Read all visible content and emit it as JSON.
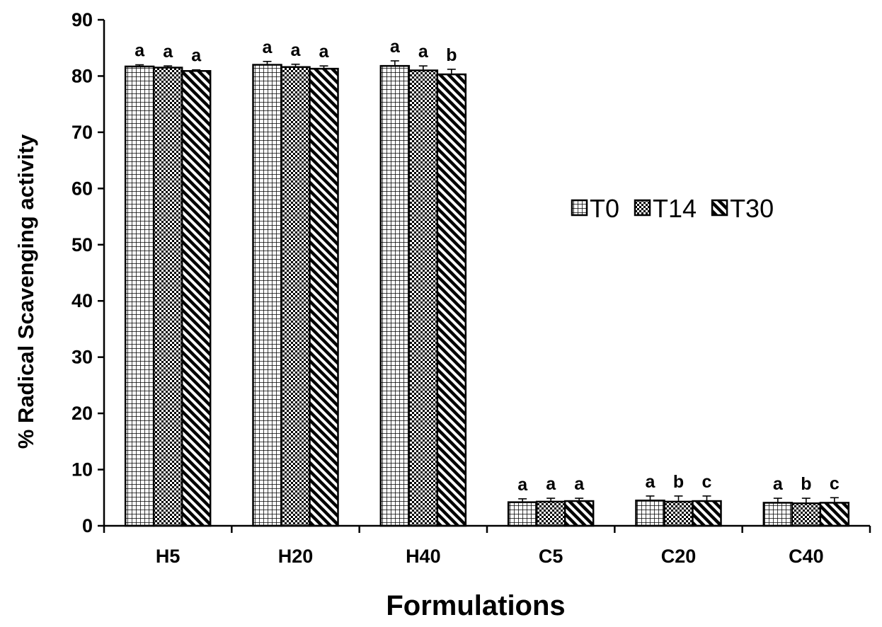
{
  "chart_data": {
    "type": "bar",
    "title": "",
    "xlabel": "Formulations",
    "ylabel": "% Radical Scavenging activity",
    "ylim": [
      0,
      90
    ],
    "yticks": [
      0,
      10,
      20,
      30,
      40,
      50,
      60,
      70,
      80,
      90
    ],
    "grid": false,
    "legend_position": "right",
    "categories": [
      "H5",
      "H20",
      "H40",
      "C5",
      "C20",
      "C40"
    ],
    "series": [
      {
        "name": "T0",
        "pattern": "grid",
        "values": [
          81.7,
          82.0,
          81.8,
          4.2,
          4.5,
          4.1
        ],
        "errors": [
          0.3,
          0.6,
          0.9,
          0.6,
          0.8,
          0.8
        ],
        "labels": [
          "a",
          "a",
          "a",
          "a",
          "a",
          "a"
        ]
      },
      {
        "name": "T14",
        "pattern": "checker",
        "values": [
          81.5,
          81.6,
          81.0,
          4.3,
          4.3,
          4.0
        ],
        "errors": [
          0.3,
          0.5,
          0.8,
          0.6,
          1.0,
          0.9
        ],
        "labels": [
          "a",
          "a",
          "a",
          "a",
          "b",
          "b"
        ]
      },
      {
        "name": "T30",
        "pattern": "diagonal",
        "values": [
          80.9,
          81.3,
          80.3,
          4.4,
          4.4,
          4.1
        ],
        "errors": [
          0.2,
          0.5,
          0.9,
          0.5,
          0.9,
          0.9
        ],
        "labels": [
          "a",
          "a",
          "b",
          "a",
          "c",
          "c"
        ]
      }
    ]
  }
}
